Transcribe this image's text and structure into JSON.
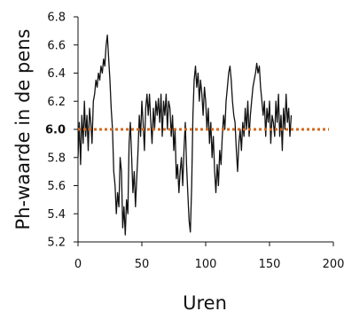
{
  "chart_data": {
    "type": "line",
    "title": "",
    "xlabel": "Uren",
    "ylabel": "Ph-waarde in de pens",
    "xlim": [
      0,
      200
    ],
    "ylim": [
      5.2,
      6.8
    ],
    "x_ticks": [
      0,
      50,
      100,
      150,
      200
    ],
    "x_tick_labels": [
      "0",
      "50",
      "100",
      "150",
      "200"
    ],
    "y_ticks": [
      5.2,
      5.4,
      5.6,
      5.8,
      6.0,
      6.2,
      6.4,
      6.6,
      6.8
    ],
    "y_tick_labels": [
      "5.2",
      "5.4",
      "5.6",
      "5.8",
      "6.0",
      "6.2",
      "6.4",
      "6.6",
      "6.8"
    ],
    "grid": false,
    "reference_line": {
      "y": 6.0,
      "label": "6.0",
      "style": "dotted",
      "color": "#d2691e"
    },
    "colors": {
      "series": "#111111",
      "reference": "#d2691e",
      "axis": "#111111"
    },
    "series": [
      {
        "points": [
          [
            0,
            5.8
          ],
          [
            1,
            6.05
          ],
          [
            2,
            5.75
          ],
          [
            3,
            6.1
          ],
          [
            4,
            5.9
          ],
          [
            5,
            6.2
          ],
          [
            6,
            5.95
          ],
          [
            7,
            6.1
          ],
          [
            8,
            5.85
          ],
          [
            9,
            6.15
          ],
          [
            10,
            6.05
          ],
          [
            11,
            5.9
          ],
          [
            12,
            6.2
          ],
          [
            13,
            6.25
          ],
          [
            14,
            6.35
          ],
          [
            15,
            6.3
          ],
          [
            16,
            6.4
          ],
          [
            17,
            6.35
          ],
          [
            18,
            6.45
          ],
          [
            19,
            6.4
          ],
          [
            20,
            6.5
          ],
          [
            21,
            6.45
          ],
          [
            22,
            6.6
          ],
          [
            23,
            6.67
          ],
          [
            24,
            6.5
          ],
          [
            25,
            6.35
          ],
          [
            26,
            6.15
          ],
          [
            27,
            6.0
          ],
          [
            28,
            5.7
          ],
          [
            29,
            5.6
          ],
          [
            30,
            5.4
          ],
          [
            31,
            5.55
          ],
          [
            32,
            5.45
          ],
          [
            33,
            5.8
          ],
          [
            34,
            5.7
          ],
          [
            35,
            5.3
          ],
          [
            36,
            5.45
          ],
          [
            37,
            5.25
          ],
          [
            38,
            5.5
          ],
          [
            39,
            5.4
          ],
          [
            40,
            5.9
          ],
          [
            41,
            6.05
          ],
          [
            42,
            5.8
          ],
          [
            43,
            5.55
          ],
          [
            44,
            5.7
          ],
          [
            45,
            5.45
          ],
          [
            46,
            5.65
          ],
          [
            47,
            5.85
          ],
          [
            48,
            6.1
          ],
          [
            49,
            5.95
          ],
          [
            50,
            6.2
          ],
          [
            51,
            6.05
          ],
          [
            52,
            5.85
          ],
          [
            53,
            6.15
          ],
          [
            54,
            6.25
          ],
          [
            55,
            6.1
          ],
          [
            56,
            6.25
          ],
          [
            57,
            6.05
          ],
          [
            58,
            5.9
          ],
          [
            59,
            6.15
          ],
          [
            60,
            6.0
          ],
          [
            61,
            6.2
          ],
          [
            62,
            6.1
          ],
          [
            63,
            6.22
          ],
          [
            64,
            6.05
          ],
          [
            65,
            6.25
          ],
          [
            66,
            5.95
          ],
          [
            67,
            6.2
          ],
          [
            68,
            6.1
          ],
          [
            69,
            6.25
          ],
          [
            70,
            6.0
          ],
          [
            71,
            6.2
          ],
          [
            72,
            6.15
          ],
          [
            73,
            5.95
          ],
          [
            74,
            6.1
          ],
          [
            75,
            5.85
          ],
          [
            76,
            6.0
          ],
          [
            77,
            5.65
          ],
          [
            78,
            5.75
          ],
          [
            79,
            5.55
          ],
          [
            80,
            5.7
          ],
          [
            81,
            5.8
          ],
          [
            82,
            5.6
          ],
          [
            83,
            5.85
          ],
          [
            84,
            6.05
          ],
          [
            85,
            5.75
          ],
          [
            86,
            5.55
          ],
          [
            87,
            5.35
          ],
          [
            88,
            5.27
          ],
          [
            89,
            5.6
          ],
          [
            90,
            6.1
          ],
          [
            91,
            6.35
          ],
          [
            92,
            6.45
          ],
          [
            93,
            6.3
          ],
          [
            94,
            6.4
          ],
          [
            95,
            6.2
          ],
          [
            96,
            6.35
          ],
          [
            97,
            6.25
          ],
          [
            98,
            6.1
          ],
          [
            99,
            6.3
          ],
          [
            100,
            6.2
          ],
          [
            101,
            6.0
          ],
          [
            102,
            6.15
          ],
          [
            103,
            5.9
          ],
          [
            104,
            6.05
          ],
          [
            105,
            5.8
          ],
          [
            106,
            5.95
          ],
          [
            107,
            5.7
          ],
          [
            108,
            5.55
          ],
          [
            109,
            5.75
          ],
          [
            110,
            5.6
          ],
          [
            111,
            5.85
          ],
          [
            112,
            5.75
          ],
          [
            113,
            5.95
          ],
          [
            114,
            6.1
          ],
          [
            115,
            6.0
          ],
          [
            116,
            6.2
          ],
          [
            117,
            6.3
          ],
          [
            118,
            6.4
          ],
          [
            119,
            6.45
          ],
          [
            120,
            6.35
          ],
          [
            121,
            6.2
          ],
          [
            122,
            6.1
          ],
          [
            123,
            6.05
          ],
          [
            124,
            5.85
          ],
          [
            125,
            5.7
          ],
          [
            126,
            5.9
          ],
          [
            127,
            6.0
          ],
          [
            128,
            5.85
          ],
          [
            129,
            6.05
          ],
          [
            130,
            5.95
          ],
          [
            131,
            6.15
          ],
          [
            132,
            6.0
          ],
          [
            133,
            6.2
          ],
          [
            134,
            5.95
          ],
          [
            135,
            6.1
          ],
          [
            136,
            6.2
          ],
          [
            137,
            6.3
          ],
          [
            138,
            6.35
          ],
          [
            139,
            6.4
          ],
          [
            140,
            6.47
          ],
          [
            141,
            6.4
          ],
          [
            142,
            6.45
          ],
          [
            143,
            6.3
          ],
          [
            144,
            6.2
          ],
          [
            145,
            6.1
          ],
          [
            146,
            6.2
          ],
          [
            147,
            5.95
          ],
          [
            148,
            6.15
          ],
          [
            149,
            6.05
          ],
          [
            150,
            6.2
          ],
          [
            151,
            5.9
          ],
          [
            152,
            6.1
          ],
          [
            153,
            6.05
          ],
          [
            154,
            5.95
          ],
          [
            155,
            6.2
          ],
          [
            156,
            6.05
          ],
          [
            157,
            6.25
          ],
          [
            158,
            5.95
          ],
          [
            159,
            6.1
          ],
          [
            160,
            5.85
          ],
          [
            161,
            6.15
          ],
          [
            162,
            6.0
          ],
          [
            163,
            6.25
          ],
          [
            164,
            6.05
          ],
          [
            165,
            6.15
          ],
          [
            166,
            5.95
          ],
          [
            167,
            6.1
          ]
        ]
      }
    ]
  }
}
